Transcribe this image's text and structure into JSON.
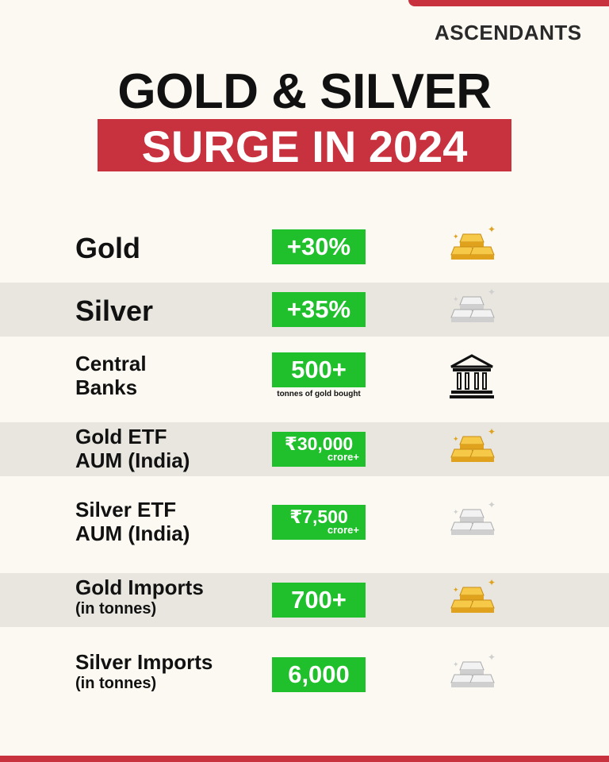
{
  "header": {
    "brand": "ASCENDANTS",
    "title_line1": "GOLD & SILVER",
    "title_line2": "SURGE IN 2024"
  },
  "rows": [
    {
      "label": [
        "Gold"
      ],
      "value": "+30%"
    },
    {
      "label": [
        "Silver"
      ],
      "value": "+35%"
    },
    {
      "label": [
        "Central",
        "Banks"
      ],
      "value": "500+",
      "note": "tonnes of gold bought"
    },
    {
      "label": [
        "Gold ETF",
        "AUM (India)"
      ],
      "value": "₹30,000",
      "unit": "crore+"
    },
    {
      "label": [
        "Silver ETF",
        "AUM (India)"
      ],
      "value": "₹7,500",
      "unit": "crore+"
    },
    {
      "label": [
        "Gold Imports",
        "(in tonnes)"
      ],
      "value": "700+"
    },
    {
      "label": [
        "Silver Imports",
        "(in tonnes)"
      ],
      "value": "6,000"
    }
  ]
}
